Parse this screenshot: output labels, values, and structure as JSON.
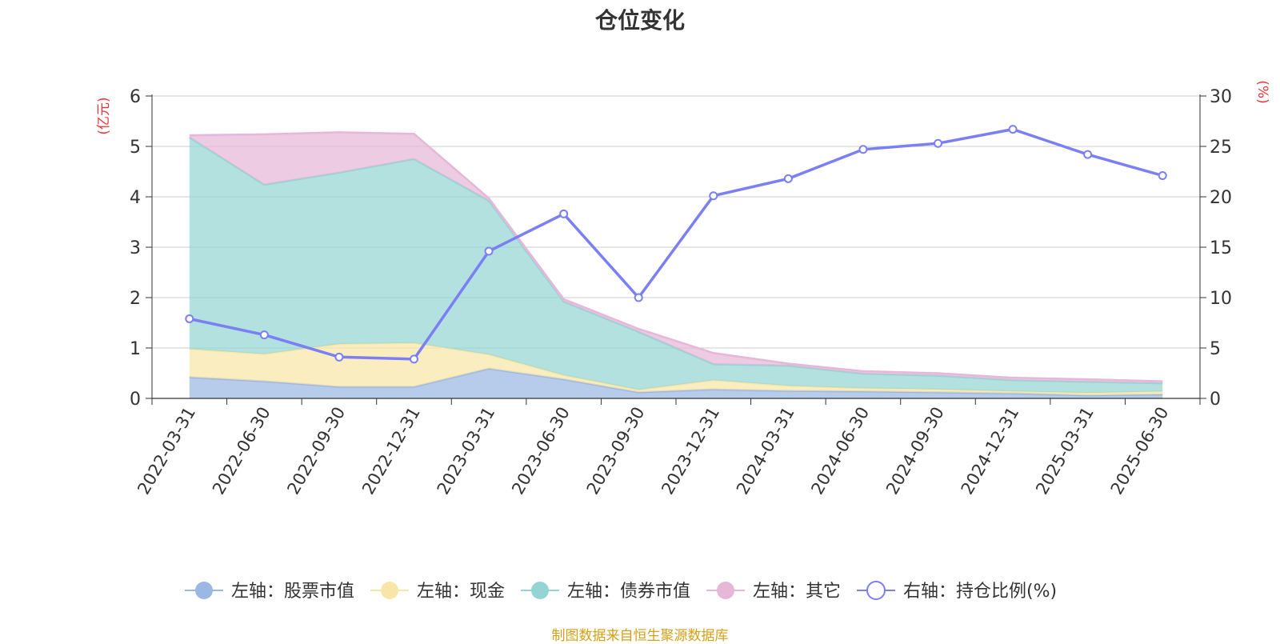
{
  "chart_data": {
    "type": "area",
    "title": "仓位变化",
    "left_axis_unit": "(亿元)",
    "right_axis_unit": "(%)",
    "categories": [
      "2022-03-31",
      "2022-06-30",
      "2022-09-30",
      "2022-12-31",
      "2023-03-31",
      "2023-06-30",
      "2023-09-30",
      "2023-12-31",
      "2024-03-31",
      "2024-06-30",
      "2024-09-30",
      "2024-12-31",
      "2025-03-31",
      "2025-06-30"
    ],
    "left_ylim": [
      0,
      6
    ],
    "left_ticks": [
      "0",
      "1",
      "2",
      "3",
      "4",
      "5",
      "6"
    ],
    "right_ylim": [
      0,
      30
    ],
    "right_ticks": [
      "0",
      "5",
      "10",
      "15",
      "20",
      "25",
      "30"
    ],
    "stacked_series": [
      {
        "name": "左轴：股票市值",
        "color": "#9bb7e3",
        "values": [
          0.42,
          0.34,
          0.23,
          0.23,
          0.59,
          0.38,
          0.12,
          0.18,
          0.15,
          0.14,
          0.12,
          0.1,
          0.06,
          0.08
        ]
      },
      {
        "name": "左轴：现金",
        "color": "#f8e6a8",
        "values": [
          0.56,
          0.54,
          0.85,
          0.87,
          0.28,
          0.08,
          0.05,
          0.18,
          0.1,
          0.06,
          0.06,
          0.04,
          0.05,
          0.06
        ]
      },
      {
        "name": "左轴：债券市值",
        "color": "#94d5d4",
        "values": [
          4.2,
          3.36,
          3.4,
          3.65,
          3.05,
          1.46,
          1.15,
          0.32,
          0.4,
          0.29,
          0.27,
          0.22,
          0.22,
          0.16
        ]
      },
      {
        "name": "左轴：其它",
        "color": "#e6b7d8",
        "values": [
          0.04,
          1.0,
          0.8,
          0.5,
          0.05,
          0.05,
          0.06,
          0.22,
          0.04,
          0.05,
          0.05,
          0.05,
          0.05,
          0.04
        ]
      }
    ],
    "line_series": {
      "name": "右轴：持仓比例(%)",
      "color": "#7b7ff5",
      "values": [
        7.9,
        6.3,
        4.1,
        3.9,
        14.6,
        18.3,
        10.0,
        20.1,
        21.8,
        24.7,
        25.3,
        26.7,
        24.2,
        22.1
      ]
    },
    "grid": true,
    "legend_position": "bottom"
  },
  "footer": "制图数据来自恒生聚源数据库"
}
